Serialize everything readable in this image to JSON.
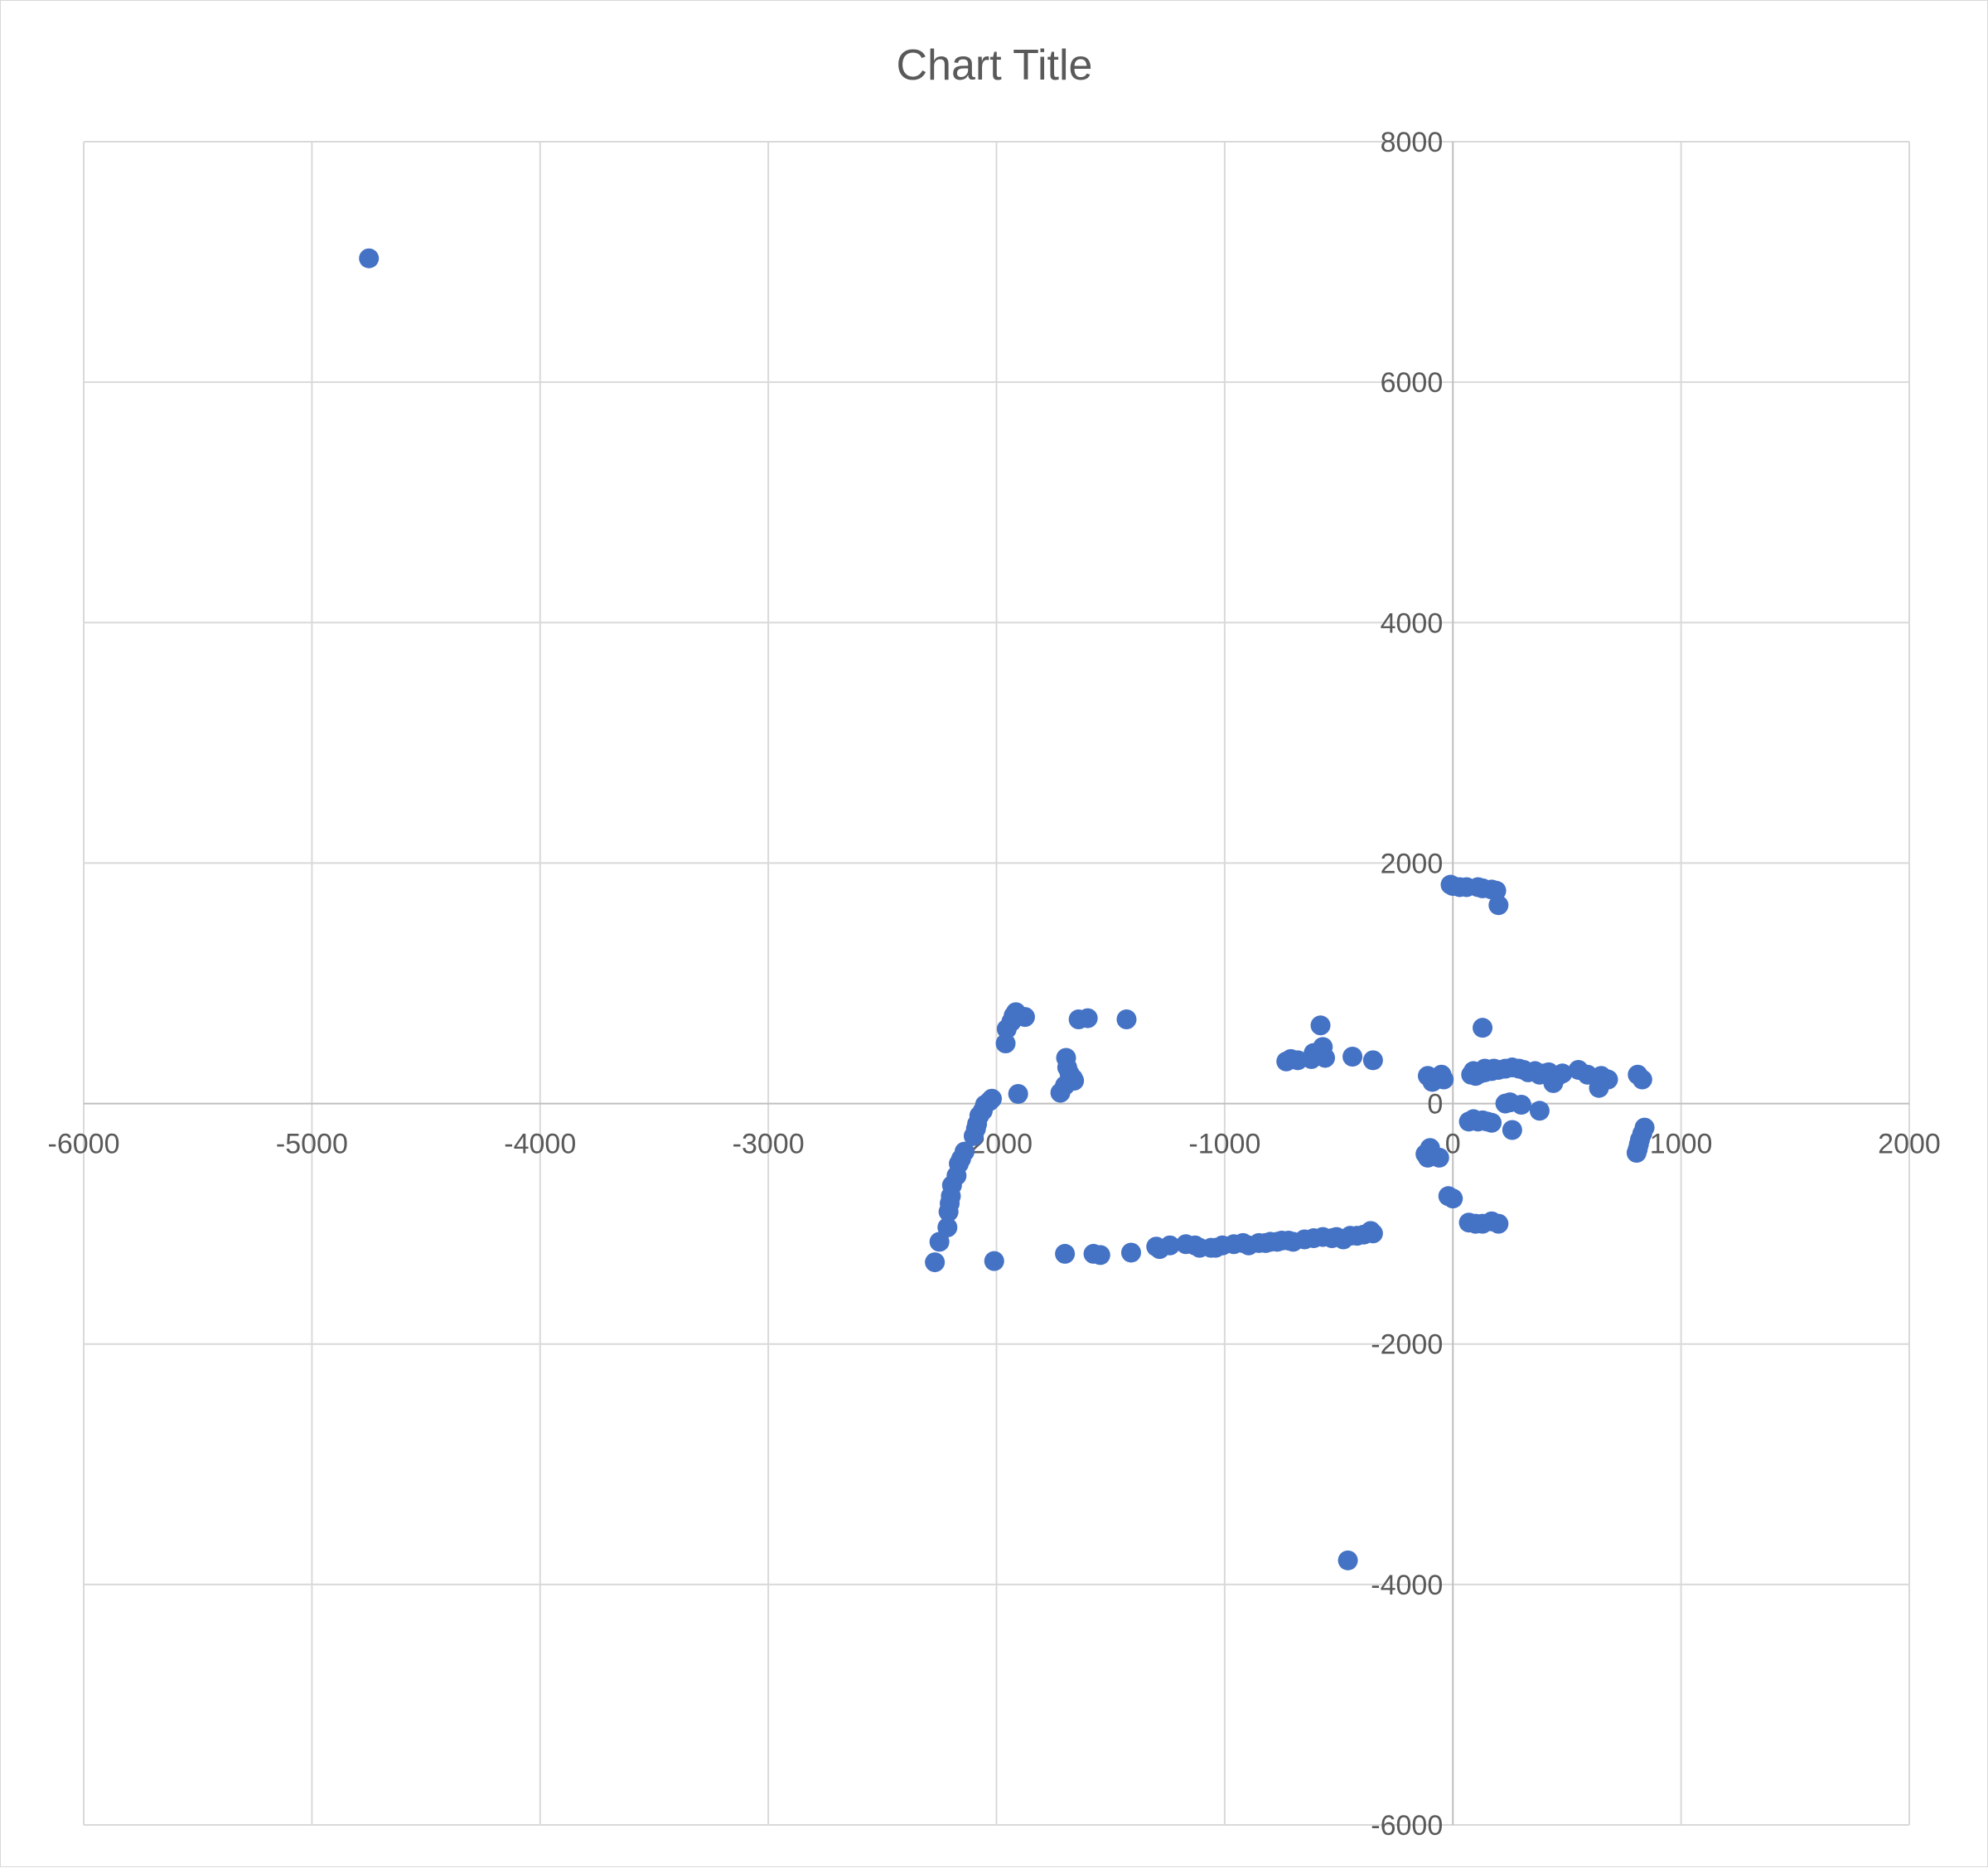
{
  "chart_data": {
    "type": "scatter",
    "title": "Chart Title",
    "xlabel": "",
    "ylabel": "",
    "xlim": [
      -6000,
      2000
    ],
    "ylim": [
      -6000,
      8000
    ],
    "x_ticks": [
      "-6000",
      "-5000",
      "-4000",
      "-3000",
      "-2000",
      "-1000",
      "0",
      "1000",
      "2000"
    ],
    "y_ticks": [
      "8000",
      "6000",
      "4000",
      "2000",
      "0",
      "-2000",
      "-4000",
      "-6000"
    ],
    "grid": true,
    "legend": "none",
    "marker_color": "#4472C4",
    "series": [
      {
        "x": [
          -4750,
          -1915,
          -1925,
          -1875,
          -1935,
          -1955,
          -1960,
          -1640,
          -1600,
          -1430,
          -1695,
          -1690,
          -1680,
          -1665,
          -1660,
          -1700,
          -1720,
          -1905,
          -2020,
          -2030,
          -2050,
          -2060,
          -2075,
          -2085,
          -2090,
          -2100,
          -2140,
          -2155,
          -2165,
          -2175,
          -2195,
          -2200,
          -2205,
          -2210,
          -2215,
          -2250,
          -2270,
          -2010,
          -1700,
          -1575,
          -1545,
          -1410,
          -1300,
          -1285,
          -1240,
          -1170,
          -1130,
          -1110,
          -1060,
          -1040,
          -1010,
          -960,
          -920,
          -895,
          -850,
          -820,
          -800,
          -770,
          -750,
          -720,
          -700,
          -650,
          -610,
          -570,
          -530,
          -510,
          -480,
          -450,
          -420,
          -390,
          -360,
          -350,
          -580,
          -570,
          -560,
          -610,
          -620,
          -680,
          -710,
          -730,
          -440,
          -350,
          -460,
          -110,
          -90,
          -60,
          -50,
          -40,
          -60,
          -110,
          -120,
          -100,
          -10,
          0,
          30,
          60,
          110,
          130,
          170,
          190,
          200,
          90,
          80,
          100,
          120,
          140,
          180,
          130,
          110,
          140,
          170,
          200,
          230,
          260,
          290,
          310,
          330,
          360,
          380,
          400,
          420,
          440,
          460,
          480,
          550,
          590,
          640,
          680,
          810,
          830,
          650,
          230,
          250,
          300,
          260,
          380,
          70,
          90,
          110,
          130,
          150,
          170,
          -20,
          0,
          70,
          100,
          130,
          170,
          200,
          840,
          830,
          820,
          815,
          810,
          805
        ],
        "y": [
          7030,
          760,
          730,
          720,
          680,
          620,
          500,
          700,
          710,
          700,
          380,
          300,
          250,
          210,
          190,
          150,
          90,
          80,
          40,
          20,
          -10,
          -60,
          -100,
          -170,
          -210,
          -270,
          -400,
          -460,
          -500,
          -600,
          -680,
          -770,
          -830,
          -900,
          -1030,
          -1150,
          -1320,
          -1310,
          -1250,
          -1250,
          -1260,
          -1240,
          -1190,
          -1210,
          -1180,
          -1170,
          -1180,
          -1200,
          -1200,
          -1200,
          -1180,
          -1170,
          -1160,
          -1180,
          -1160,
          -1160,
          -1150,
          -1150,
          -1140,
          -1140,
          -1150,
          -1130,
          -1120,
          -1110,
          -1120,
          -1110,
          -1130,
          -1100,
          -1100,
          -1090,
          -1060,
          -1080,
          650,
          470,
          380,
          420,
          370,
          360,
          370,
          350,
          390,
          360,
          -3800,
          230,
          180,
          220,
          240,
          200,
          -450,
          -450,
          -420,
          -370,
          1820,
          1810,
          1800,
          1800,
          1800,
          1790,
          1780,
          1770,
          1650,
          270,
          240,
          230,
          250,
          290,
          290,
          630,
          250,
          260,
          270,
          280,
          290,
          300,
          290,
          280,
          260,
          270,
          240,
          250,
          260,
          170,
          230,
          250,
          280,
          240,
          130,
          200,
          240,
          200,
          230,
          0,
          10,
          -10,
          -220,
          -60,
          -150,
          -130,
          -150,
          -140,
          -150,
          -160,
          -770,
          -790,
          -990,
          -1000,
          -1000,
          -980,
          -1000,
          -200,
          -250,
          -300,
          -340,
          -380,
          -410
        ]
      }
    ]
  }
}
